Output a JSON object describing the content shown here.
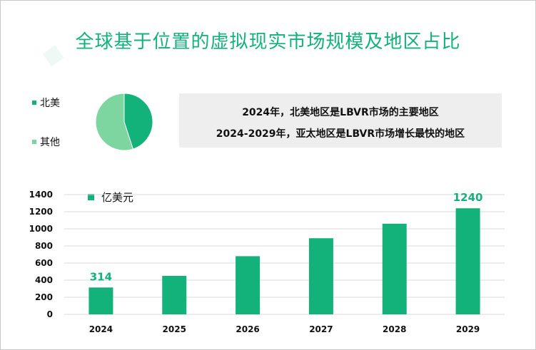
{
  "title": "全球基于位置的虚拟现实市场规模及地区占比",
  "colors": {
    "accent": "#13b27b",
    "north_america": "#12b27a",
    "other": "#7dd59f",
    "callout_bg": "#eeeeee"
  },
  "pie": {
    "legend": [
      {
        "label": "北美",
        "color": "#12b27a"
      },
      {
        "label": "其他",
        "color": "#7dd59f"
      }
    ]
  },
  "callout": {
    "line1": "2024年，北美地区是LBVR市场的主要地区",
    "line2": "2024-2029年，亚太地区是LBVR市场增长最快的地区"
  },
  "bar_legend": "亿美元",
  "chart_data": [
    {
      "type": "pie",
      "labels": [
        "北美",
        "其他"
      ],
      "values": [
        45,
        55
      ],
      "colors": [
        "#12b27a",
        "#7dd59f"
      ]
    },
    {
      "type": "bar",
      "categories": [
        "2024",
        "2025",
        "2026",
        "2027",
        "2028",
        "2029"
      ],
      "values": [
        314,
        450,
        680,
        890,
        1060,
        1240
      ],
      "data_labels": {
        "2024": "314",
        "2029": "1240"
      },
      "ylabel": "亿美元",
      "yticks": [
        "0",
        "200",
        "400",
        "600",
        "800",
        "1000",
        "1200",
        "1400"
      ],
      "ylim": [
        0,
        1400
      ],
      "grid": true,
      "color": "#13b27b"
    }
  ]
}
